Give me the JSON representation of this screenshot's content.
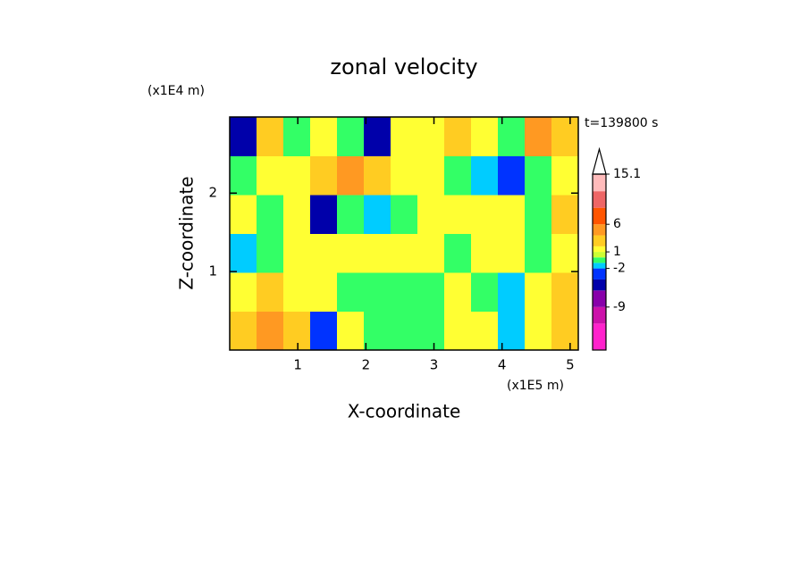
{
  "chart_data": {
    "type": "contour",
    "title": "zonal velocity",
    "xlabel": "X-coordinate",
    "ylabel": "Z-coordinate",
    "xunit": "(x1E5 m)",
    "yunit": "(x1E4 m)",
    "time_label": "t=139800 s",
    "xlim": [
      0,
      5.12
    ],
    "ylim": [
      0,
      2.97
    ],
    "xticks": [
      1,
      2,
      3,
      4,
      5
    ],
    "yticks": [
      1,
      2
    ],
    "z": [
      [
        3,
        4,
        2,
        -3,
        1,
        -0.5,
        -0.5,
        -0.5,
        1.5,
        1.5,
        -1.5,
        1.5,
        3
      ],
      [
        1.5,
        3,
        1.5,
        1.5,
        -0.5,
        -0.5,
        -0.5,
        -0.5,
        1.5,
        -0.5,
        -1.5,
        1.5,
        3
      ],
      [
        -1.5,
        -0.5,
        1.5,
        1.5,
        1.5,
        1.5,
        1.5,
        1.5,
        -0.5,
        1.5,
        1.5,
        -0.5,
        1.5
      ],
      [
        1.5,
        -0.5,
        1.5,
        -5,
        -0.5,
        -1.5,
        -0.5,
        1.5,
        1.5,
        1.5,
        1.5,
        -0.5,
        3
      ],
      [
        -0.5,
        1.5,
        1.5,
        3,
        5,
        3,
        1.5,
        1.5,
        -0.5,
        -1.5,
        -3,
        -0.5,
        1.5
      ],
      [
        -5,
        3,
        -0.5,
        1.5,
        -0.5,
        -5,
        1.5,
        1.5,
        3,
        1.5,
        -0.5,
        5,
        3
      ]
    ],
    "levels": [
      -16.8,
      -12,
      -9,
      -6,
      -4,
      -2,
      -1,
      0,
      1,
      2,
      4,
      6,
      9,
      12,
      15.1
    ],
    "colors": [
      "#ff22cc",
      "#cc11aa",
      "#8800aa",
      "#0000aa",
      "#0033ff",
      "#00ccff",
      "#33ff66",
      "#ccff33",
      "#ffff33",
      "#ffcc22",
      "#ff9922",
      "#ff5500",
      "#ee6666",
      "#ffbbbb"
    ],
    "cbar_ticks": [
      15.1,
      6,
      1,
      -2,
      -9
    ]
  }
}
